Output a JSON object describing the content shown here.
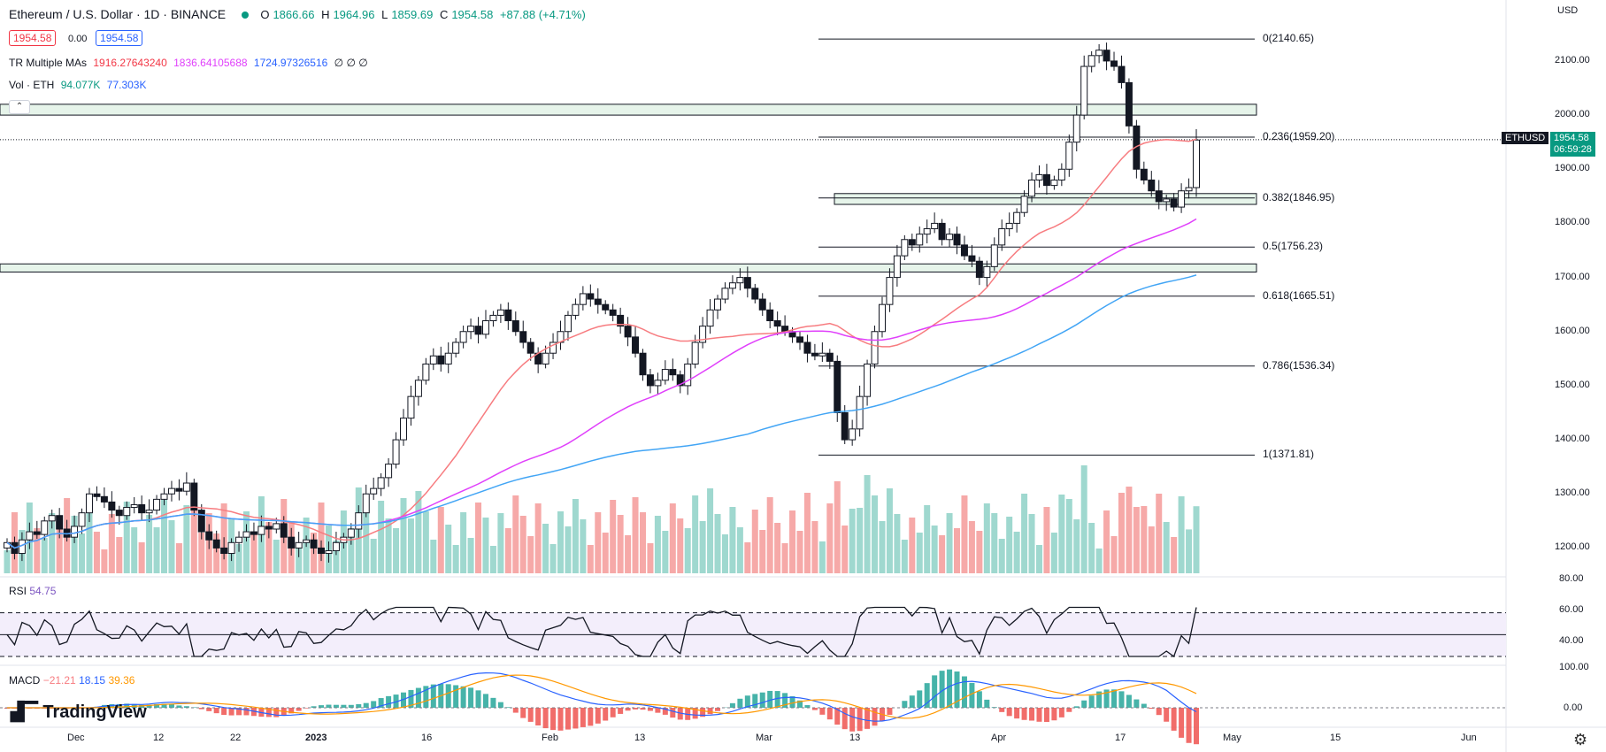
{
  "header": {
    "symbol_title": "Ethereum / U.S. Dollar · 1D · BINANCE",
    "ohlc": [
      {
        "k": "O",
        "v": "1866.66"
      },
      {
        "k": "H",
        "v": "1964.96"
      },
      {
        "k": "L",
        "v": "1859.69"
      },
      {
        "k": "C",
        "v": "1954.58"
      }
    ],
    "change": "+87.88 (+4.71%)",
    "sell_price": "1954.58",
    "spread": "0.00",
    "buy_price": "1954.58",
    "ma_label": "TR Multiple MAs",
    "ma_values": [
      "1916.27643240",
      "1836.64105688",
      "1724.97326516"
    ],
    "ma_extra": "∅ ∅ ∅",
    "vol_label": "Vol · ETH",
    "vol_values": [
      "94.077K",
      "77.303K"
    ],
    "collapse_symbol": "⌃"
  },
  "price_axis": {
    "currency": "USD",
    "ticks": [
      "2100.00",
      "2000.00",
      "1900.00",
      "1800.00",
      "1700.00",
      "1600.00",
      "1500.00",
      "1400.00",
      "1300.00",
      "1200.00"
    ],
    "ticker": "ETHUSD",
    "last_price": "1954.58",
    "countdown": "06:59:28"
  },
  "fib_levels": [
    {
      "label": "0(2140.65)",
      "price": 2140.65
    },
    {
      "label": "0.236(1959.20)",
      "price": 1959.2
    },
    {
      "label": "0.382(1846.95)",
      "price": 1846.95
    },
    {
      "label": "0.5(1756.23)",
      "price": 1756.23
    },
    {
      "label": "0.618(1665.51)",
      "price": 1665.51
    },
    {
      "label": "0.786(1536.34)",
      "price": 1536.34
    },
    {
      "label": "1(1371.81)",
      "price": 1371.81
    }
  ],
  "rsi": {
    "label": "RSI",
    "value": "54.75",
    "ticks": [
      "80.00",
      "60.00",
      "40.00"
    ]
  },
  "macd": {
    "label": "MACD",
    "values": [
      "−21.21",
      "18.15",
      "39.36"
    ],
    "ticks": [
      "100.00",
      "0.00"
    ]
  },
  "time_axis": [
    "Dec",
    "12",
    "22",
    "2023",
    "16",
    "Feb",
    "13",
    "Mar",
    "13",
    "Apr",
    "17",
    "May",
    "15",
    "Jun"
  ],
  "branding": "TradingView",
  "colors": {
    "up": "#26a69a",
    "down": "#ef5350",
    "ma20": "#f77c80",
    "ma50": "#e040fb",
    "ma100": "#42a5f5",
    "zone_fill": "#e6f4ea"
  },
  "chart_data": {
    "type": "candlestick",
    "closes": [
      1210,
      1190,
      1215,
      1230,
      1225,
      1250,
      1260,
      1235,
      1220,
      1240,
      1265,
      1300,
      1295,
      1285,
      1270,
      1260,
      1275,
      1280,
      1265,
      1270,
      1290,
      1300,
      1310,
      1305,
      1320,
      1270,
      1230,
      1215,
      1200,
      1190,
      1210,
      1220,
      1230,
      1225,
      1240,
      1235,
      1245,
      1220,
      1200,
      1210,
      1215,
      1200,
      1190,
      1195,
      1210,
      1220,
      1235,
      1265,
      1300,
      1310,
      1330,
      1355,
      1400,
      1440,
      1480,
      1510,
      1540,
      1555,
      1540,
      1560,
      1580,
      1600,
      1610,
      1595,
      1620,
      1630,
      1640,
      1620,
      1600,
      1580,
      1560,
      1540,
      1560,
      1580,
      1600,
      1630,
      1650,
      1670,
      1660,
      1650,
      1640,
      1630,
      1610,
      1590,
      1560,
      1520,
      1500,
      1510,
      1530,
      1520,
      1500,
      1540,
      1580,
      1610,
      1640,
      1660,
      1680,
      1690,
      1700,
      1680,
      1660,
      1640,
      1620,
      1610,
      1600,
      1590,
      1580,
      1560,
      1555,
      1560,
      1545,
      1450,
      1400,
      1420,
      1480,
      1540,
      1600,
      1650,
      1700,
      1740,
      1770,
      1760,
      1780,
      1790,
      1800,
      1770,
      1780,
      1760,
      1740,
      1730,
      1700,
      1720,
      1760,
      1790,
      1800,
      1820,
      1850,
      1880,
      1890,
      1870,
      1880,
      1900,
      1950,
      2000,
      2090,
      2110,
      2120,
      2100,
      2090,
      2060,
      1980,
      1900,
      1880,
      1860,
      1840,
      1845,
      1830,
      1860,
      1866,
      1954
    ],
    "ma20_label": "1916.27643240",
    "ma50_label": "1836.64105688",
    "ma100_label": "1724.97326516",
    "ylim": [
      1150,
      2180
    ]
  }
}
